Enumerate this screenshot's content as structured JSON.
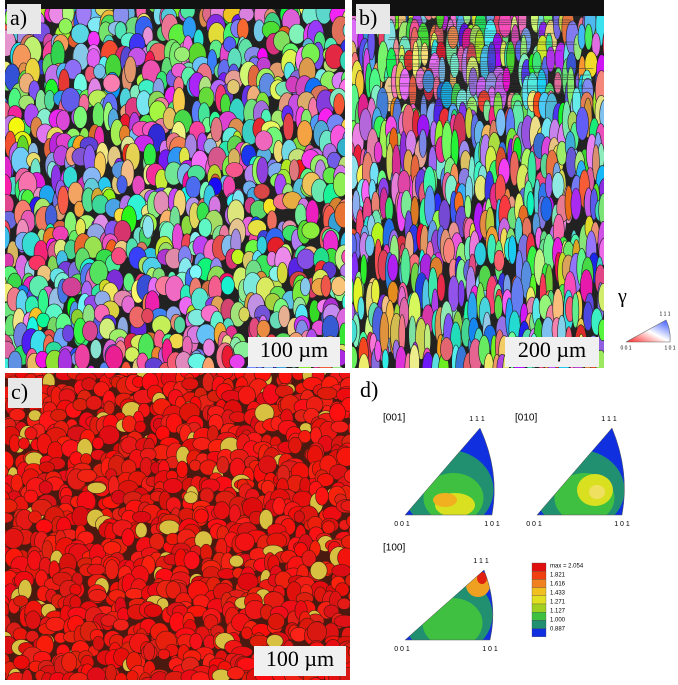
{
  "panels": [
    {
      "label": "a)",
      "scale_bar": "100 µm"
    },
    {
      "label": "b)",
      "scale_bar": "200 µm"
    },
    {
      "label": "c)",
      "scale_bar": "100 µm"
    },
    {
      "label": "d)"
    }
  ],
  "ipf_key": {
    "symbol": "γ",
    "corners": [
      "1 1 1",
      "0 0 1",
      "1 0 1"
    ]
  },
  "pole_figures": [
    {
      "title": "[001]",
      "corners": [
        "1 1 1",
        "0 0 1",
        "1 0 1"
      ]
    },
    {
      "title": "[010]",
      "corners": [
        "1 1 1",
        "0 0 1",
        "1 0 1"
      ]
    },
    {
      "title": "[100]",
      "corners": [
        "1 1 1",
        "0 0 1",
        "1 0 1"
      ]
    }
  ],
  "legend": {
    "max": "max = 2.054",
    "levels": [
      "1.821",
      "1.616",
      "1.433",
      "1.271",
      "1.127",
      "1.000",
      "0.887"
    ]
  }
}
